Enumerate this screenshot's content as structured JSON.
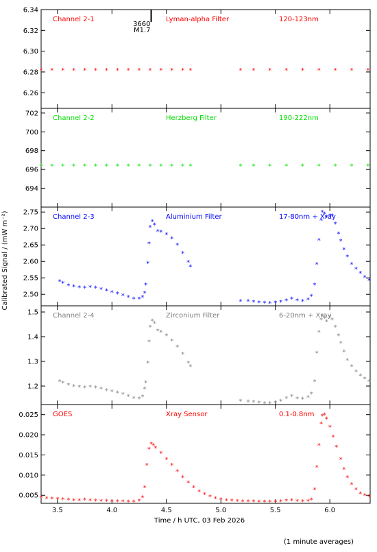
{
  "figure": {
    "ylabel": "Calibrated Signal / (mW m⁻²)",
    "xlabel": "Time / h UTC, 03 Feb 2026",
    "footnote": "(1 minute averages)",
    "x_tick_labels": [
      "3.5",
      "4.0",
      "4.5",
      "5.0",
      "5.5",
      "6.0"
    ],
    "colors": {
      "red": "#ff0000",
      "green": "#00e000",
      "blue": "#0000ff",
      "grey": "#808080",
      "axes": "#000000"
    }
  },
  "chart_data": [
    {
      "type": "scatter",
      "panel": "Channel 2-1",
      "labels": [
        "Channel 2-1",
        "Lyman-alpha Filter",
        "120-123nm"
      ],
      "color": "#ff0000",
      "xlim": [
        3.35,
        6.37
      ],
      "ylim": [
        6.245,
        6.34
      ],
      "y_ticks": [
        6.26,
        6.28,
        6.3,
        6.32,
        6.34
      ],
      "y_tick_labels": [
        "6.26",
        "6.28",
        "6.30",
        "6.32",
        "6.34"
      ],
      "annotation": {
        "x": 4.36,
        "lines": [
          "3660",
          "M1.7"
        ]
      },
      "points": [
        [
          3.35,
          6.282
        ],
        [
          3.45,
          6.282
        ],
        [
          3.55,
          6.282
        ],
        [
          3.65,
          6.282
        ],
        [
          3.75,
          6.282
        ],
        [
          3.85,
          6.282
        ],
        [
          3.95,
          6.282
        ],
        [
          4.05,
          6.282
        ],
        [
          4.15,
          6.282
        ],
        [
          4.25,
          6.282
        ],
        [
          4.35,
          6.282
        ],
        [
          4.45,
          6.282
        ],
        [
          4.55,
          6.282
        ],
        [
          4.65,
          6.282
        ],
        [
          4.72,
          6.282
        ],
        [
          5.18,
          6.282
        ],
        [
          5.3,
          6.282
        ],
        [
          5.45,
          6.282
        ],
        [
          5.6,
          6.282
        ],
        [
          5.75,
          6.282
        ],
        [
          5.9,
          6.282
        ],
        [
          6.05,
          6.282
        ],
        [
          6.2,
          6.282
        ],
        [
          6.35,
          6.282
        ]
      ]
    },
    {
      "type": "scatter",
      "panel": "Channel 2-2",
      "labels": [
        "Channel 2-2",
        "Herzberg Filter",
        "190-222nm"
      ],
      "color": "#00e000",
      "xlim": [
        3.35,
        6.37
      ],
      "ylim": [
        692.0,
        702.5
      ],
      "y_ticks": [
        694,
        696,
        698,
        700,
        702
      ],
      "y_tick_labels": [
        "694",
        "696",
        "698",
        "700",
        "702"
      ],
      "points": [
        [
          3.35,
          696.4
        ],
        [
          3.45,
          696.4
        ],
        [
          3.55,
          696.4
        ],
        [
          3.65,
          696.4
        ],
        [
          3.75,
          696.4
        ],
        [
          3.85,
          696.4
        ],
        [
          3.95,
          696.4
        ],
        [
          4.05,
          696.4
        ],
        [
          4.15,
          696.4
        ],
        [
          4.25,
          696.4
        ],
        [
          4.35,
          696.4
        ],
        [
          4.45,
          696.4
        ],
        [
          4.55,
          696.4
        ],
        [
          4.65,
          696.4
        ],
        [
          4.72,
          696.4
        ],
        [
          5.18,
          696.4
        ],
        [
          5.3,
          696.4
        ],
        [
          5.45,
          696.4
        ],
        [
          5.6,
          696.4
        ],
        [
          5.75,
          696.4
        ],
        [
          5.9,
          696.4
        ],
        [
          6.05,
          696.4
        ],
        [
          6.2,
          696.4
        ],
        [
          6.35,
          696.4
        ]
      ]
    },
    {
      "type": "scatter",
      "panel": "Channel 2-3",
      "labels": [
        "Channel 2-3",
        "Aluminium Filter",
        "17-80nm  + Xray"
      ],
      "color": "#0000ff",
      "xlim": [
        3.35,
        6.37
      ],
      "ylim": [
        2.465,
        2.765
      ],
      "y_ticks": [
        2.5,
        2.55,
        2.6,
        2.65,
        2.7,
        2.75
      ],
      "y_tick_labels": [
        "2.50",
        "2.55",
        "2.60",
        "2.65",
        "2.70",
        "2.75"
      ],
      "points": [
        [
          3.52,
          2.54
        ],
        [
          3.55,
          2.535
        ],
        [
          3.6,
          2.527
        ],
        [
          3.65,
          2.524
        ],
        [
          3.7,
          2.521
        ],
        [
          3.75,
          2.52
        ],
        [
          3.8,
          2.522
        ],
        [
          3.85,
          2.52
        ],
        [
          3.9,
          2.516
        ],
        [
          3.95,
          2.512
        ],
        [
          4.0,
          2.507
        ],
        [
          4.05,
          2.502
        ],
        [
          4.1,
          2.497
        ],
        [
          4.15,
          2.492
        ],
        [
          4.2,
          2.487
        ],
        [
          4.25,
          2.487
        ],
        [
          4.28,
          2.492
        ],
        [
          4.3,
          2.505
        ],
        [
          4.31,
          2.53
        ],
        [
          4.33,
          2.595
        ],
        [
          4.34,
          2.655
        ],
        [
          4.35,
          2.705
        ],
        [
          4.37,
          2.722
        ],
        [
          4.39,
          2.712
        ],
        [
          4.42,
          2.692
        ],
        [
          4.45,
          2.69
        ],
        [
          4.5,
          2.683
        ],
        [
          4.55,
          2.67
        ],
        [
          4.6,
          2.65
        ],
        [
          4.65,
          2.625
        ],
        [
          4.7,
          2.598
        ],
        [
          4.72,
          2.585
        ],
        [
          5.18,
          2.48
        ],
        [
          5.25,
          2.48
        ],
        [
          5.3,
          2.477
        ],
        [
          5.35,
          2.475
        ],
        [
          5.4,
          2.474
        ],
        [
          5.45,
          2.473
        ],
        [
          5.5,
          2.475
        ],
        [
          5.55,
          2.478
        ],
        [
          5.6,
          2.482
        ],
        [
          5.65,
          2.487
        ],
        [
          5.7,
          2.482
        ],
        [
          5.75,
          2.48
        ],
        [
          5.8,
          2.485
        ],
        [
          5.83,
          2.495
        ],
        [
          5.86,
          2.53
        ],
        [
          5.88,
          2.592
        ],
        [
          5.9,
          2.665
        ],
        [
          5.92,
          2.725
        ],
        [
          5.93,
          2.75
        ],
        [
          5.95,
          2.745
        ],
        [
          5.97,
          2.735
        ],
        [
          6.0,
          2.74
        ],
        [
          6.02,
          2.74
        ],
        [
          6.05,
          2.715
        ],
        [
          6.08,
          2.685
        ],
        [
          6.1,
          2.663
        ],
        [
          6.13,
          2.637
        ],
        [
          6.16,
          2.615
        ],
        [
          6.2,
          2.592
        ],
        [
          6.24,
          2.578
        ],
        [
          6.28,
          2.565
        ],
        [
          6.32,
          2.553
        ],
        [
          6.36,
          2.543
        ]
      ]
    },
    {
      "type": "scatter",
      "panel": "Channel 2-4",
      "labels": [
        "Channel 2-4",
        "Zirconium Filter",
        "6-20nm + Xray"
      ],
      "color": "#808080",
      "xlim": [
        3.35,
        6.37
      ],
      "ylim": [
        1.125,
        1.525
      ],
      "y_ticks": [
        1.2,
        1.3,
        1.4,
        1.5
      ],
      "y_tick_labels": [
        "1.2",
        "1.3",
        "1.4",
        "1.5"
      ],
      "points": [
        [
          3.52,
          1.22
        ],
        [
          3.55,
          1.214
        ],
        [
          3.6,
          1.205
        ],
        [
          3.65,
          1.2
        ],
        [
          3.7,
          1.197
        ],
        [
          3.75,
          1.194
        ],
        [
          3.8,
          1.197
        ],
        [
          3.85,
          1.195
        ],
        [
          3.9,
          1.19
        ],
        [
          3.95,
          1.184
        ],
        [
          4.0,
          1.179
        ],
        [
          4.05,
          1.173
        ],
        [
          4.1,
          1.168
        ],
        [
          4.15,
          1.16
        ],
        [
          4.2,
          1.152
        ],
        [
          4.25,
          1.15
        ],
        [
          4.28,
          1.158
        ],
        [
          4.3,
          1.19
        ],
        [
          4.31,
          1.215
        ],
        [
          4.33,
          1.295
        ],
        [
          4.34,
          1.38
        ],
        [
          4.35,
          1.44
        ],
        [
          4.37,
          1.465
        ],
        [
          4.39,
          1.455
        ],
        [
          4.42,
          1.425
        ],
        [
          4.45,
          1.42
        ],
        [
          4.5,
          1.405
        ],
        [
          4.55,
          1.385
        ],
        [
          4.6,
          1.36
        ],
        [
          4.65,
          1.33
        ],
        [
          4.7,
          1.295
        ],
        [
          4.72,
          1.28
        ],
        [
          5.18,
          1.14
        ],
        [
          5.25,
          1.138
        ],
        [
          5.3,
          1.136
        ],
        [
          5.35,
          1.133
        ],
        [
          5.4,
          1.13
        ],
        [
          5.45,
          1.13
        ],
        [
          5.5,
          1.133
        ],
        [
          5.55,
          1.14
        ],
        [
          5.6,
          1.152
        ],
        [
          5.65,
          1.16
        ],
        [
          5.7,
          1.15
        ],
        [
          5.75,
          1.148
        ],
        [
          5.8,
          1.155
        ],
        [
          5.83,
          1.17
        ],
        [
          5.86,
          1.22
        ],
        [
          5.88,
          1.335
        ],
        [
          5.9,
          1.42
        ],
        [
          5.92,
          1.47
        ],
        [
          5.93,
          1.485
        ],
        [
          5.95,
          1.477
        ],
        [
          5.97,
          1.463
        ],
        [
          6.0,
          1.48
        ],
        [
          6.02,
          1.47
        ],
        [
          6.05,
          1.44
        ],
        [
          6.08,
          1.405
        ],
        [
          6.1,
          1.375
        ],
        [
          6.13,
          1.34
        ],
        [
          6.16,
          1.305
        ],
        [
          6.2,
          1.28
        ],
        [
          6.24,
          1.26
        ],
        [
          6.28,
          1.243
        ],
        [
          6.32,
          1.23
        ],
        [
          6.36,
          1.22
        ]
      ]
    },
    {
      "type": "scatter",
      "panel": "GOES",
      "labels": [
        "GOES",
        "Xray Sensor",
        "0.1-0.8nm"
      ],
      "color": "#ff0000",
      "xlim": [
        3.35,
        6.37
      ],
      "ylim": [
        0.003,
        0.0275
      ],
      "y_ticks": [
        0.005,
        0.01,
        0.015,
        0.02,
        0.025
      ],
      "y_tick_labels": [
        "0.005",
        "0.010",
        "0.015",
        "0.020",
        "0.025"
      ],
      "points": [
        [
          3.35,
          0.0045
        ],
        [
          3.4,
          0.0043
        ],
        [
          3.45,
          0.0042
        ],
        [
          3.5,
          0.0041
        ],
        [
          3.55,
          0.004
        ],
        [
          3.6,
          0.0039
        ],
        [
          3.65,
          0.0038
        ],
        [
          3.7,
          0.0038
        ],
        [
          3.75,
          0.0039
        ],
        [
          3.8,
          0.0038
        ],
        [
          3.85,
          0.0037
        ],
        [
          3.9,
          0.0036
        ],
        [
          3.95,
          0.0036
        ],
        [
          4.0,
          0.0035
        ],
        [
          4.05,
          0.0035
        ],
        [
          4.1,
          0.0035
        ],
        [
          4.15,
          0.0034
        ],
        [
          4.2,
          0.0034
        ],
        [
          4.25,
          0.0037
        ],
        [
          4.28,
          0.0045
        ],
        [
          4.3,
          0.007
        ],
        [
          4.32,
          0.0125
        ],
        [
          4.34,
          0.0165
        ],
        [
          4.36,
          0.0178
        ],
        [
          4.38,
          0.0175
        ],
        [
          4.4,
          0.0168
        ],
        [
          4.45,
          0.0155
        ],
        [
          4.5,
          0.014
        ],
        [
          4.55,
          0.0125
        ],
        [
          4.6,
          0.011
        ],
        [
          4.65,
          0.0095
        ],
        [
          4.7,
          0.0082
        ],
        [
          4.75,
          0.007
        ],
        [
          4.8,
          0.006
        ],
        [
          4.85,
          0.0053
        ],
        [
          4.9,
          0.0047
        ],
        [
          4.95,
          0.0043
        ],
        [
          5.0,
          0.004
        ],
        [
          5.05,
          0.0038
        ],
        [
          5.1,
          0.0037
        ],
        [
          5.15,
          0.0036
        ],
        [
          5.2,
          0.0035
        ],
        [
          5.25,
          0.0035
        ],
        [
          5.3,
          0.0035
        ],
        [
          5.35,
          0.0034
        ],
        [
          5.4,
          0.0034
        ],
        [
          5.45,
          0.0034
        ],
        [
          5.5,
          0.0034
        ],
        [
          5.55,
          0.0035
        ],
        [
          5.6,
          0.0037
        ],
        [
          5.65,
          0.0038
        ],
        [
          5.7,
          0.0036
        ],
        [
          5.75,
          0.0035
        ],
        [
          5.8,
          0.0036
        ],
        [
          5.83,
          0.0039
        ],
        [
          5.86,
          0.0065
        ],
        [
          5.88,
          0.012
        ],
        [
          5.9,
          0.0175
        ],
        [
          5.92,
          0.0228
        ],
        [
          5.93,
          0.0248
        ],
        [
          5.95,
          0.025
        ],
        [
          5.97,
          0.024
        ],
        [
          6.0,
          0.022
        ],
        [
          6.03,
          0.0195
        ],
        [
          6.06,
          0.017
        ],
        [
          6.1,
          0.014
        ],
        [
          6.13,
          0.0115
        ],
        [
          6.16,
          0.0095
        ],
        [
          6.2,
          0.0078
        ],
        [
          6.24,
          0.0065
        ],
        [
          6.28,
          0.0055
        ],
        [
          6.32,
          0.005
        ],
        [
          6.36,
          0.0047
        ]
      ]
    }
  ]
}
